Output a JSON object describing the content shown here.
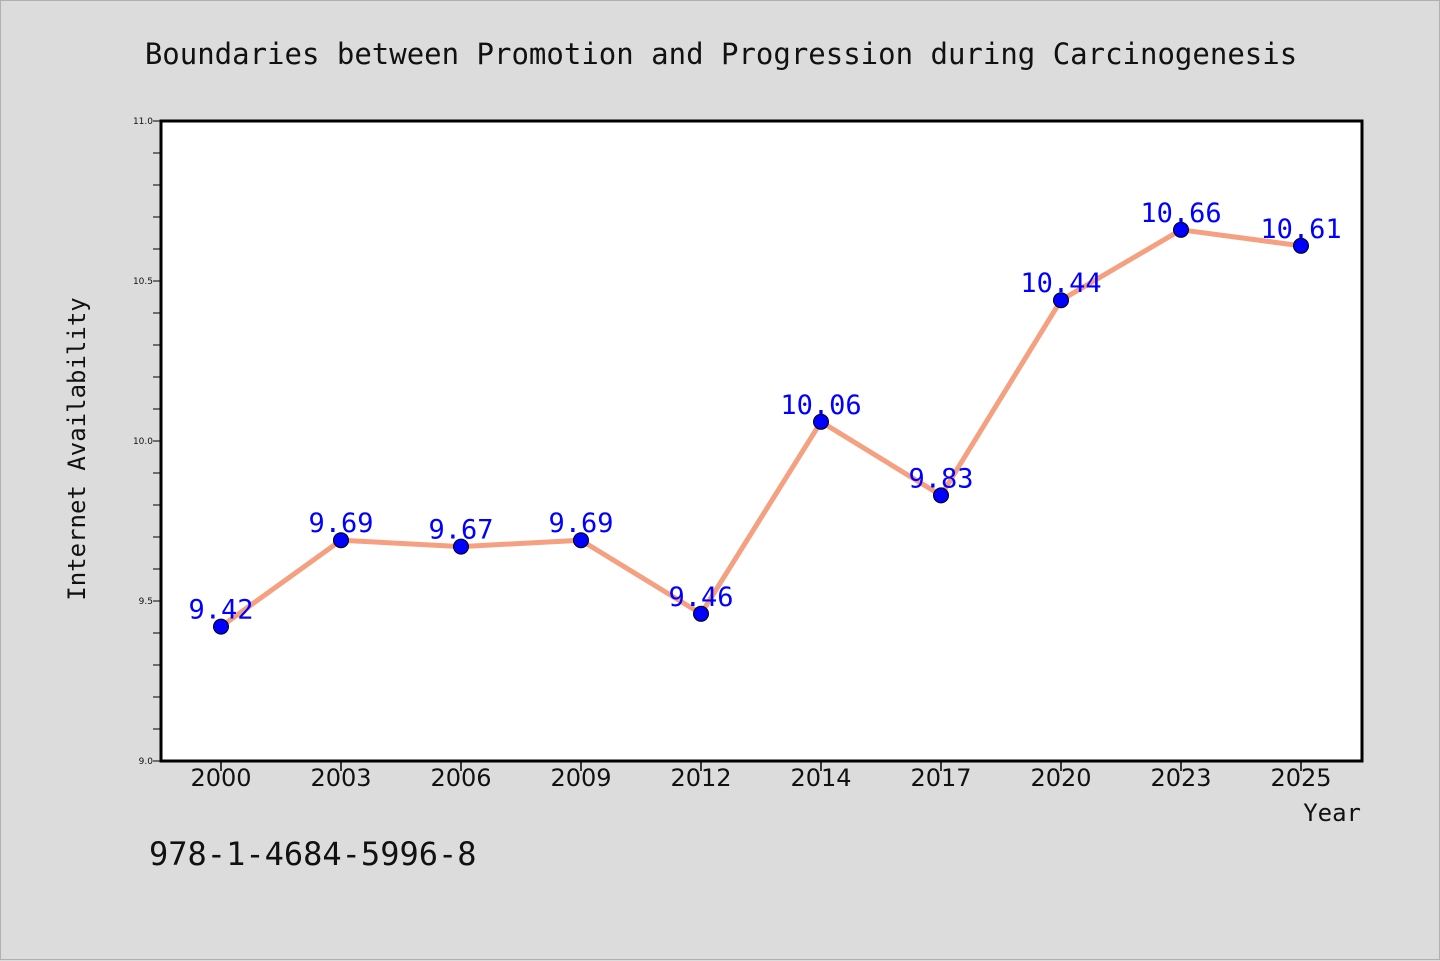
{
  "isbn": "978-1-4684-5996-8",
  "colors": {
    "background": "#dcdcdc",
    "plot_background": "#ffffff",
    "line": "#f4a081",
    "marker": "#0000ff",
    "data_label": "#0000ff",
    "axis": "#000000"
  },
  "chart_data": {
    "type": "line",
    "title": "Boundaries between Promotion and Progression during Carcinogenesis",
    "xlabel": "Year",
    "ylabel": "Internet Availability",
    "categories": [
      "2000",
      "2003",
      "2006",
      "2009",
      "2012",
      "2014",
      "2017",
      "2020",
      "2023",
      "2025"
    ],
    "series": [
      {
        "values": [
          9.42,
          9.69,
          9.67,
          9.69,
          9.46,
          10.06,
          9.83,
          10.44,
          10.66,
          10.61
        ],
        "data_labels": [
          "9.42",
          "9.69",
          "9.67",
          "9.69",
          "9.46",
          "10.06",
          "9.83",
          "10.44",
          "10.66",
          "10.61"
        ]
      }
    ],
    "ylim": [
      9.0,
      11.0
    ],
    "y_ticks": [
      "9.0",
      "9.5",
      "10.0",
      "10.5",
      "11.0"
    ],
    "y_minor_step": 0.1,
    "grid": false,
    "legend": "none",
    "marker": "circle"
  }
}
